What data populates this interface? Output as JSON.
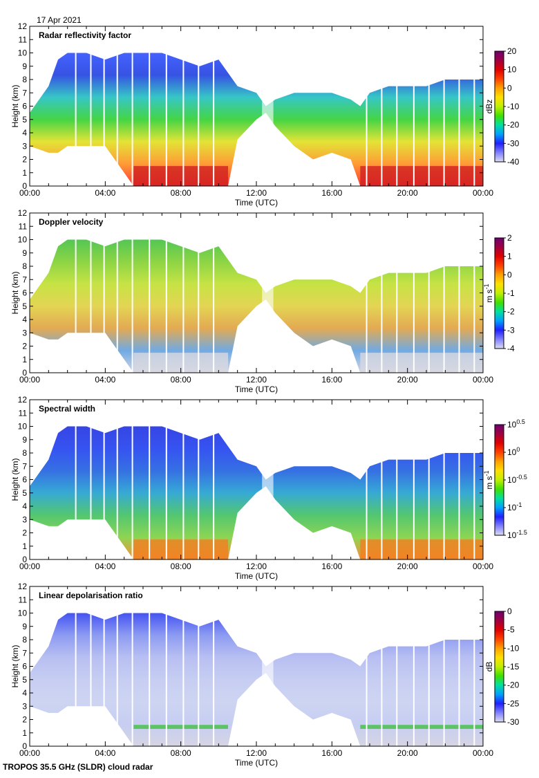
{
  "date": "17 Apr 2021",
  "footer": "TROPOS 35.5 GHz (SLDR) cloud radar",
  "chart_data": [
    {
      "type": "heatmap",
      "title": "Radar reflectivity factor",
      "xlabel": "Time (UTC)",
      "ylabel": "Height (km)",
      "xlim": [
        "00:00",
        "00:00"
      ],
      "xticks": [
        "00:00",
        "04:00",
        "08:00",
        "12:00",
        "16:00",
        "20:00",
        "00:00"
      ],
      "ylim": [
        0,
        12
      ],
      "yticks": [
        "0",
        "1",
        "2",
        "3",
        "4",
        "5",
        "6",
        "7",
        "8",
        "9",
        "10",
        "11",
        "12"
      ],
      "colorbar": {
        "label": {
          "base": "dBz",
          "sup": ""
        },
        "range": [
          -40,
          20
        ],
        "ticks": [
          {
            "base": "20",
            "sup": ""
          },
          {
            "base": "10",
            "sup": ""
          },
          {
            "base": "0",
            "sup": ""
          },
          {
            "base": "-10",
            "sup": ""
          },
          {
            "base": "-20",
            "sup": ""
          },
          {
            "base": "-30",
            "sup": ""
          },
          {
            "base": "-40",
            "sup": ""
          }
        ]
      },
      "colors": [
        "#ffffff00",
        "#3050ff",
        "#2040e0",
        "#20c0c0",
        "#30d030",
        "#e0e020",
        "#ff9020",
        "#ff2020"
      ]
    },
    {
      "type": "heatmap",
      "title": "Doppler velocity",
      "xlabel": "Time (UTC)",
      "ylabel": "Height (km)",
      "xlim": [
        "00:00",
        "00:00"
      ],
      "xticks": [
        "00:00",
        "04:00",
        "08:00",
        "12:00",
        "16:00",
        "20:00",
        "00:00"
      ],
      "ylim": [
        0,
        12
      ],
      "yticks": [
        "0",
        "1",
        "2",
        "3",
        "4",
        "5",
        "6",
        "7",
        "8",
        "9",
        "10",
        "11",
        "12"
      ],
      "colorbar": {
        "label": {
          "base": "m s",
          "sup": "-1"
        },
        "range": [
          -4,
          2
        ],
        "ticks": [
          {
            "base": "2",
            "sup": ""
          },
          {
            "base": "1",
            "sup": ""
          },
          {
            "base": "0",
            "sup": ""
          },
          {
            "base": "-1",
            "sup": ""
          },
          {
            "base": "-2",
            "sup": ""
          },
          {
            "base": "-3",
            "sup": ""
          },
          {
            "base": "-4",
            "sup": ""
          }
        ]
      },
      "colors": [
        "#ffffff00",
        "#40c040",
        "#80d030",
        "#c0e030",
        "#e0d040",
        "#e0a040",
        "#60a0e0",
        "#d0d0e0"
      ]
    },
    {
      "type": "heatmap",
      "title": "Spectral width",
      "xlabel": "Time (UTC)",
      "ylabel": "Height (km)",
      "xlim": [
        "00:00",
        "00:00"
      ],
      "xticks": [
        "00:00",
        "04:00",
        "08:00",
        "12:00",
        "16:00",
        "20:00",
        "00:00"
      ],
      "ylim": [
        0,
        12
      ],
      "yticks": [
        "0",
        "1",
        "2",
        "3",
        "4",
        "5",
        "6",
        "7",
        "8",
        "9",
        "10",
        "11",
        "12"
      ],
      "colorbar": {
        "label": {
          "base": "m s",
          "sup": "-1"
        },
        "scale": "log",
        "range": [
          -1.5,
          0.5
        ],
        "ticks": [
          {
            "base": "10",
            "sup": "0.5"
          },
          {
            "base": "10",
            "sup": "0"
          },
          {
            "base": "10",
            "sup": "-0.5"
          },
          {
            "base": "10",
            "sup": "-1"
          },
          {
            "base": "10",
            "sup": "-1.5"
          }
        ]
      },
      "colors": [
        "#ffffff00",
        "#2030e0",
        "#2040f0",
        "#2060e0",
        "#20a0d0",
        "#40c060",
        "#80d040",
        "#ff8020"
      ]
    },
    {
      "type": "heatmap",
      "title": "Linear depolarisation ratio",
      "xlabel": "Time (UTC)",
      "ylabel": "Height (km)",
      "xlim": [
        "00:00",
        "00:00"
      ],
      "xticks": [
        "00:00",
        "04:00",
        "08:00",
        "12:00",
        "16:00",
        "20:00",
        "00:00"
      ],
      "ylim": [
        0,
        12
      ],
      "yticks": [
        "0",
        "1",
        "2",
        "3",
        "4",
        "5",
        "6",
        "7",
        "8",
        "9",
        "10",
        "11",
        "12"
      ],
      "colorbar": {
        "label": {
          "base": "dB",
          "sup": ""
        },
        "range": [
          -30,
          0
        ],
        "ticks": [
          {
            "base": "0",
            "sup": ""
          },
          {
            "base": "-5",
            "sup": ""
          },
          {
            "base": "-10",
            "sup": ""
          },
          {
            "base": "-15",
            "sup": ""
          },
          {
            "base": "-20",
            "sup": ""
          },
          {
            "base": "-25",
            "sup": ""
          },
          {
            "base": "-30",
            "sup": ""
          }
        ]
      },
      "colors": [
        "#ffffff00",
        "#3040f0",
        "#8090f0",
        "#b0b8f0",
        "#c0c8f0",
        "#c8d0f0",
        "#c0c8f0",
        "#d0d0e0"
      ]
    }
  ],
  "cloud_extent": {
    "time_h": [
      0,
      1,
      1.5,
      2,
      3,
      4,
      5,
      5.5,
      6,
      7,
      8,
      9,
      10,
      10.5,
      11,
      12,
      12.5,
      13,
      14,
      15,
      16,
      17,
      17.5,
      18,
      19,
      20,
      21,
      22,
      23,
      24
    ],
    "top_km": [
      5.5,
      7.5,
      9.5,
      10,
      10,
      9.5,
      10,
      10,
      10,
      10,
      9.5,
      9,
      9.5,
      8.5,
      7.5,
      7,
      6,
      6.5,
      7,
      7,
      7,
      6.5,
      6,
      7,
      7.5,
      7.5,
      7.5,
      8,
      8,
      8
    ],
    "base_km": [
      3,
      2.5,
      2.5,
      3,
      3,
      3,
      1,
      0,
      0,
      0,
      0,
      0,
      0,
      0,
      3.5,
      5,
      5.5,
      4.5,
      3,
      2,
      2.5,
      2,
      0,
      0,
      0,
      0,
      0,
      0,
      0,
      0
    ]
  },
  "colorbar_scale": [
    "#ddddf0",
    "#8080ff",
    "#2020ff",
    "#00a0ff",
    "#00e0a0",
    "#40e000",
    "#c0f000",
    "#ffe000",
    "#ffa000",
    "#ff4000",
    "#e00000",
    "#a00040",
    "#700070"
  ]
}
